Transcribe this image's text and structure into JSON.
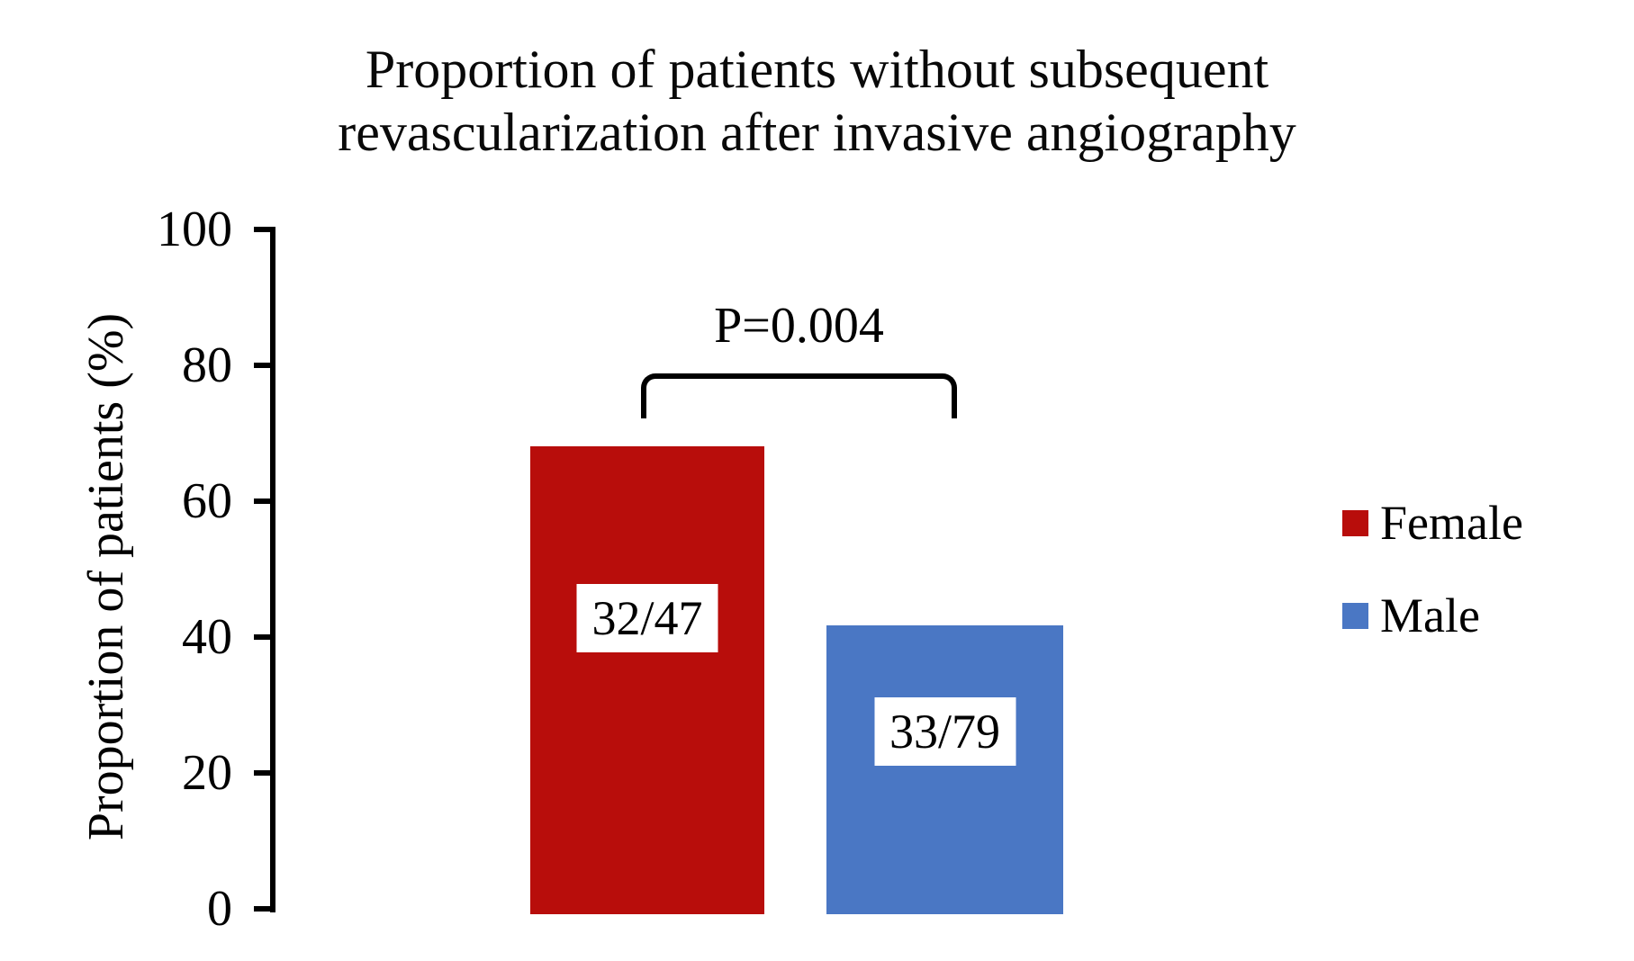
{
  "title": {
    "line1": "Proportion of patients without subsequent",
    "line2": "revascularization after invasive angiography"
  },
  "y_axis": {
    "label": "Proportion of patients (%)",
    "tick_values": [
      100,
      80,
      60,
      40,
      20,
      0
    ]
  },
  "annotation": {
    "p_value": "P=0.004"
  },
  "legend": {
    "items": [
      {
        "label": "Female",
        "color": "#b80d0b"
      },
      {
        "label": "Male",
        "color": "#4a77c4"
      }
    ]
  },
  "chart_data": {
    "type": "bar",
    "title": "Proportion of patients without subsequent revascularization after invasive angiography",
    "xlabel": "",
    "ylabel": "Proportion of patients (%)",
    "ylim": [
      0,
      100
    ],
    "y_ticks": [
      0,
      20,
      40,
      60,
      80,
      100
    ],
    "grid": false,
    "legend_position": "right",
    "categories": [
      "Female",
      "Male"
    ],
    "bars": [
      {
        "category": "Female",
        "numerator": 32,
        "denominator": 47,
        "value_pct": 68.1,
        "bar_label": "32/47",
        "color": "#b80d0b"
      },
      {
        "category": "Male",
        "numerator": 33,
        "denominator": 79,
        "value_pct": 41.8,
        "bar_label": "33/79",
        "color": "#4a77c4"
      }
    ],
    "significance": {
      "label": "P=0.004",
      "between": [
        "Female",
        "Male"
      ]
    }
  }
}
